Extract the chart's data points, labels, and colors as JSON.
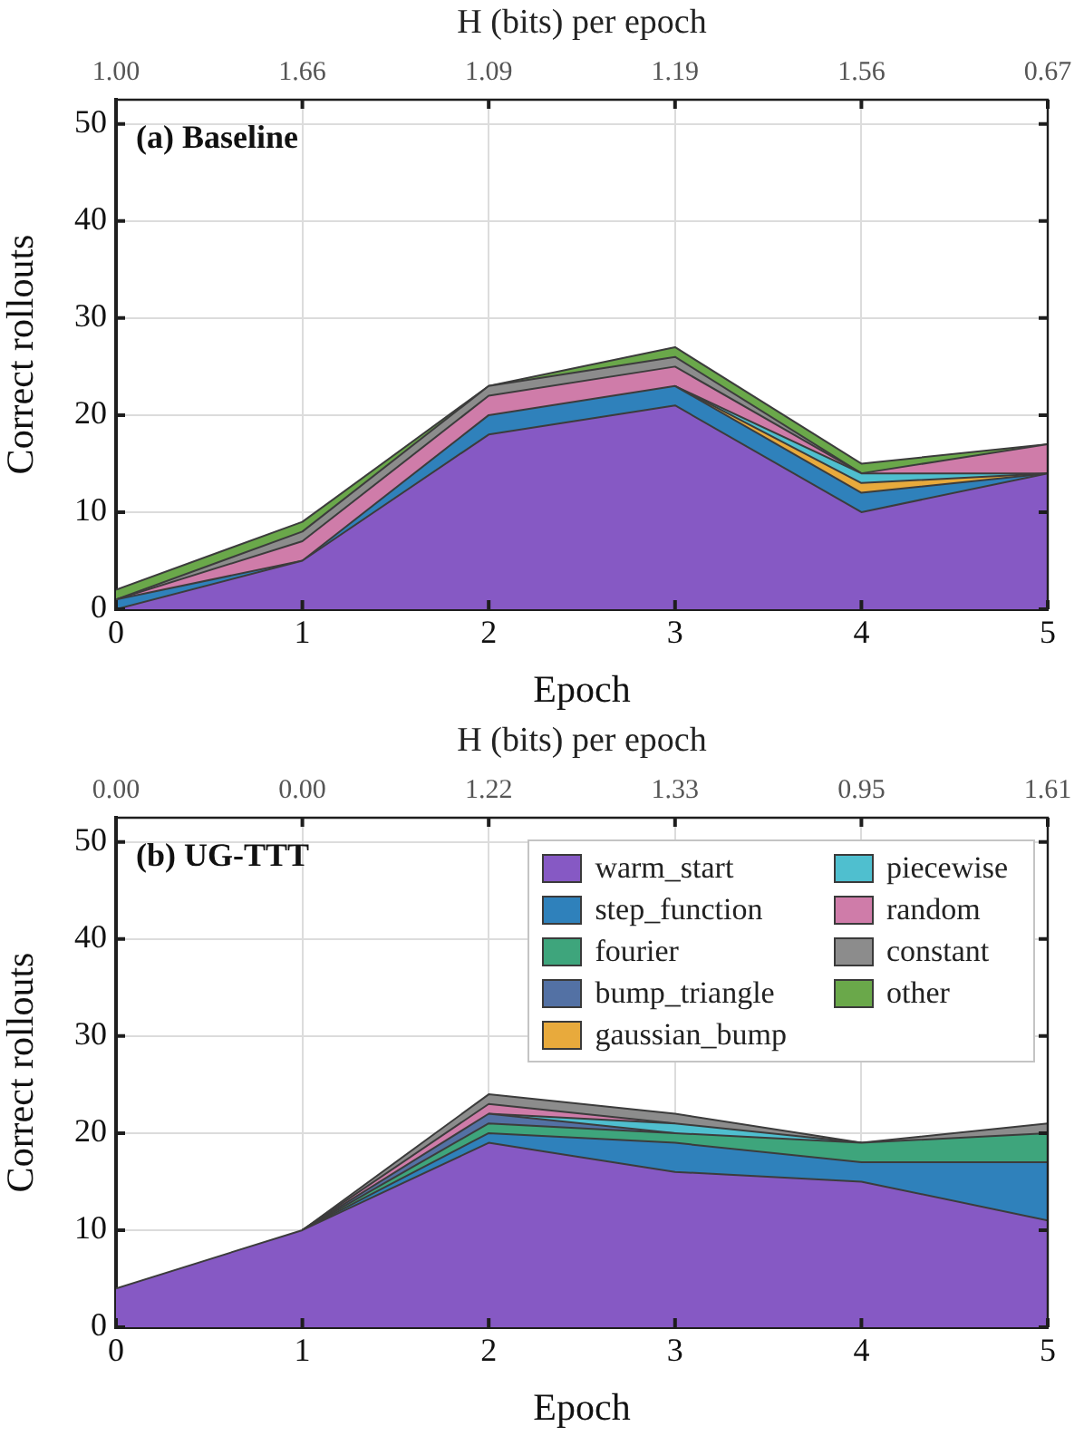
{
  "chart_data": [
    {
      "type": "area",
      "stacked": true,
      "title": "(a) Baseline",
      "xlabel": "Epoch",
      "ylabel": "Correct rollouts",
      "x2label": "H (bits) per epoch",
      "x": [
        0,
        1,
        2,
        3,
        4,
        5
      ],
      "xlim": [
        0,
        5
      ],
      "xticks": [
        0,
        1,
        2,
        3,
        4,
        5
      ],
      "ylim": [
        0,
        52.5
      ],
      "yticks": [
        0,
        10,
        20,
        30,
        40,
        50
      ],
      "grid": true,
      "annotations": [
        "1.00",
        "1.66",
        "1.09",
        "1.19",
        "1.56",
        "0.67"
      ],
      "series": [
        {
          "color": "#8659c4",
          "values": [
            0,
            5,
            18,
            21,
            10,
            14
          ]
        },
        {
          "color": "#2f81bb",
          "values": [
            1,
            0,
            2,
            2,
            2,
            0
          ]
        },
        {
          "color": "#e8aa3c",
          "values": [
            null,
            null,
            null,
            0,
            1,
            0
          ]
        },
        {
          "color": "#4fbfcf",
          "values": [
            null,
            null,
            null,
            0,
            1,
            0
          ]
        },
        {
          "color": "#cf7ca9",
          "values": [
            0,
            2,
            2,
            2,
            0,
            3
          ]
        },
        {
          "color": "#8c8c8c",
          "values": [
            0,
            1,
            1,
            1,
            0,
            null
          ]
        },
        {
          "color": "#6aa84a",
          "values": [
            1,
            1,
            0,
            1,
            1,
            0
          ]
        }
      ]
    },
    {
      "type": "area",
      "stacked": true,
      "title": "(b) UG-TTT",
      "xlabel": "Epoch",
      "ylabel": "Correct rollouts",
      "x2label": "H (bits) per epoch",
      "x": [
        0,
        1,
        2,
        3,
        4,
        5
      ],
      "xlim": [
        0,
        5
      ],
      "xticks": [
        0,
        1,
        2,
        3,
        4,
        5
      ],
      "ylim": [
        0,
        52.5
      ],
      "yticks": [
        0,
        10,
        20,
        30,
        40,
        50
      ],
      "grid": true,
      "legend": "top right",
      "annotations": [
        "0.00",
        "0.00",
        "1.22",
        "1.33",
        "0.95",
        "1.61"
      ],
      "series": [
        {
          "name": "warm_start",
          "color": "#8659c4",
          "values": [
            4,
            10,
            19,
            16,
            15,
            11
          ]
        },
        {
          "name": "step_function",
          "color": "#2f81bb",
          "values": [
            null,
            0,
            1,
            3,
            2,
            6
          ]
        },
        {
          "name": "fourier",
          "color": "#3ea57c",
          "values": [
            null,
            0,
            1,
            1,
            2,
            3
          ]
        },
        {
          "name": "bump_triangle",
          "color": "#5371a4",
          "values": [
            null,
            0,
            1,
            0,
            null,
            null
          ]
        },
        {
          "name": "gaussian_bump",
          "color": "#e8aa3c",
          "values": [
            null,
            null,
            null,
            null,
            null,
            null
          ]
        },
        {
          "name": "piecewise",
          "color": "#4fbfcf",
          "values": [
            null,
            null,
            0,
            1,
            0,
            null
          ]
        },
        {
          "name": "random",
          "color": "#cf7ca9",
          "values": [
            null,
            0,
            1,
            0,
            null,
            null
          ]
        },
        {
          "name": "constant",
          "color": "#8c8c8c",
          "values": [
            null,
            0,
            1,
            1,
            0,
            1
          ]
        },
        {
          "name": "other",
          "color": "#6aa84a",
          "values": [
            null,
            null,
            null,
            null,
            null,
            null
          ]
        }
      ]
    }
  ]
}
